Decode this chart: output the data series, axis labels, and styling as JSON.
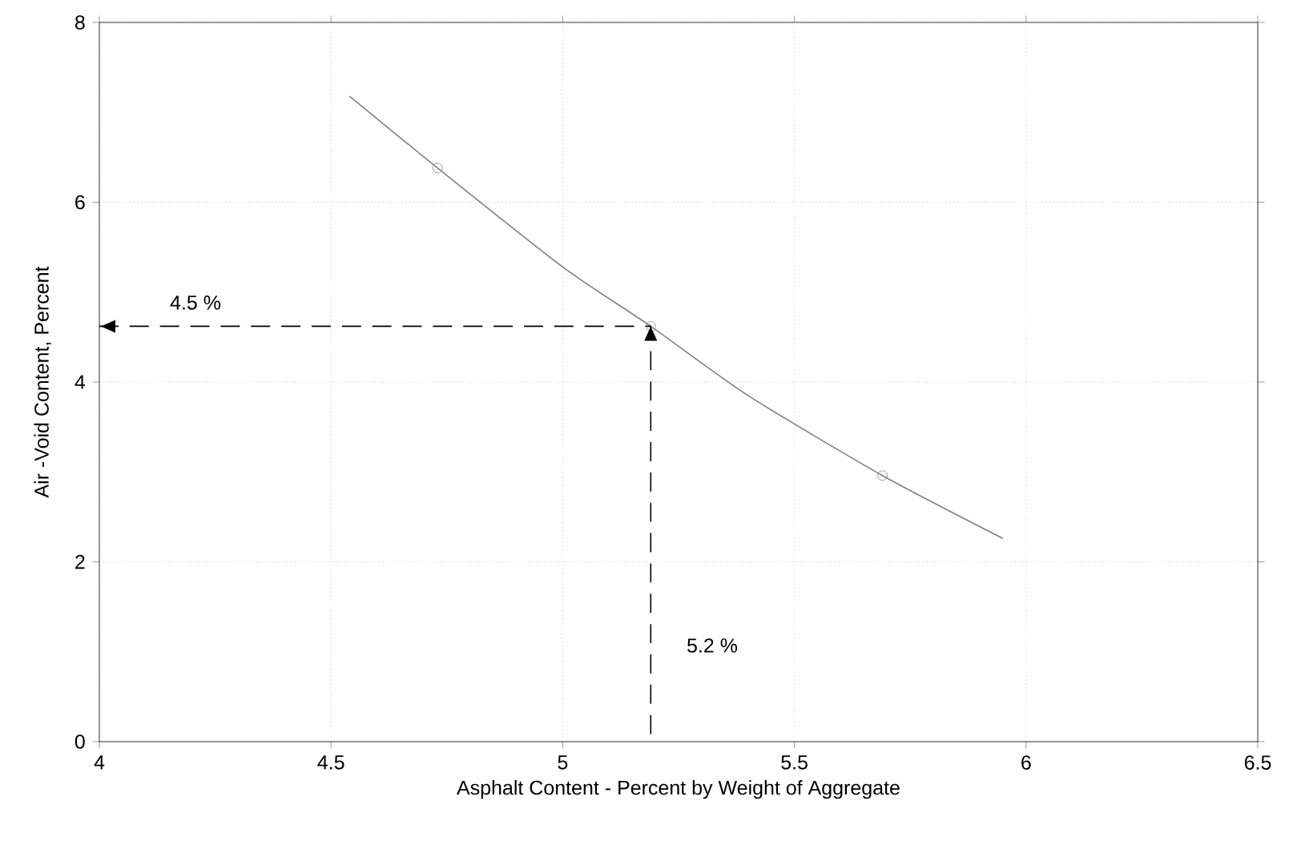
{
  "chart_data": {
    "type": "line",
    "xlabel": "Asphalt Content - Percent by Weight of Aggregate",
    "ylabel": "Air -Void Content, Percent",
    "xlim": [
      4,
      6.5
    ],
    "ylim": [
      0,
      8
    ],
    "xticks": [
      4,
      4.5,
      5,
      5.5,
      6,
      6.5
    ],
    "yticks": [
      0,
      2,
      4,
      6,
      8
    ],
    "grid": true,
    "series": [
      {
        "color": "#808080",
        "marker": "none",
        "x": [
          4.54,
          4.73,
          5.0,
          5.19,
          5.4,
          5.69,
          5.95
        ],
        "values": [
          7.18,
          6.38,
          5.28,
          4.62,
          3.85,
          2.96,
          2.26
        ]
      },
      {
        "type": "scatter",
        "color": "#808080",
        "marker": "circle",
        "x": [
          4.73,
          5.19,
          5.69
        ],
        "values": [
          6.38,
          4.62,
          2.96
        ]
      },
      {
        "color": "#000000",
        "marker": "none",
        "line_style": "dashed",
        "x": [
          4.0,
          5.19,
          5.19
        ],
        "values": [
          4.62,
          4.62,
          0
        ]
      }
    ],
    "annotations": [
      "4.5 %",
      "5.2 %"
    ]
  }
}
